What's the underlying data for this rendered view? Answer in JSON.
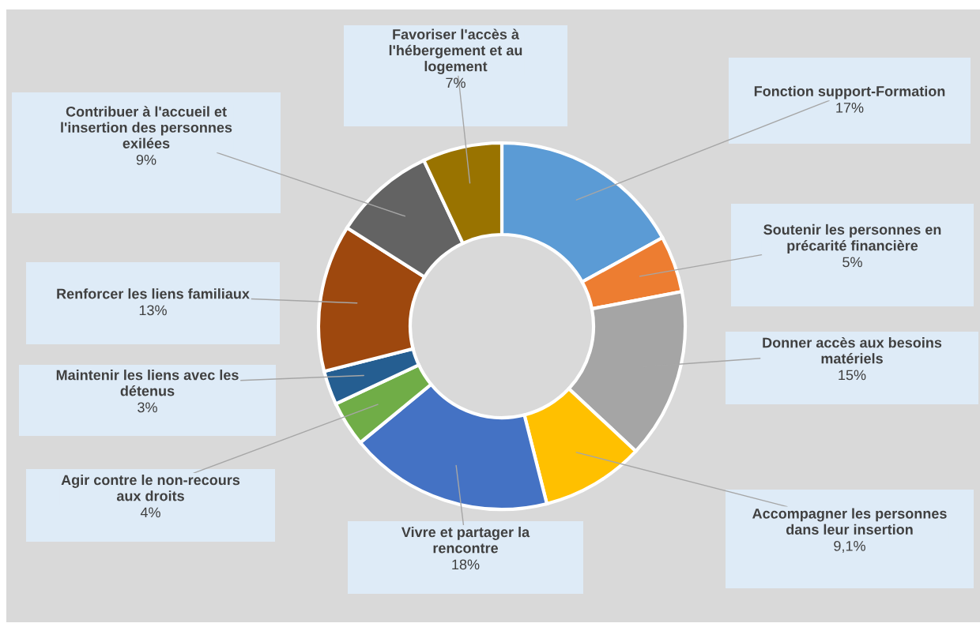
{
  "chart_data": {
    "type": "donut",
    "categories": [
      "Fonction support-Formation",
      "Soutenir les personnes en\nprécarité financière",
      "Donner accès aux besoins\nmatériels",
      "Accompagner les personnes\ndans leur insertion",
      "Vivre et partager la\nrencontre",
      "Agir contre le non-recours\naux droits",
      "Maintenir les liens avec les\ndétenus",
      "Renforcer les liens familiaux",
      "Contribuer à l'accueil et\nl'insertion des personnes\nexilées",
      "Favoriser l'accès à\nl'hébergement et au\nlogement"
    ],
    "values": [
      17,
      5,
      15,
      9.1,
      18,
      4,
      3,
      13,
      9,
      7
    ],
    "value_labels": [
      "17%",
      "5%",
      "15%",
      "9,1%",
      "18%",
      "4%",
      "3%",
      "13%",
      "9%",
      "7%"
    ],
    "colors": [
      "#5b9bd5",
      "#ed7d31",
      "#a5a5a5",
      "#ffc000",
      "#4472c4",
      "#70ad47",
      "#255e91",
      "#9e480e",
      "#636363",
      "#997300"
    ]
  }
}
